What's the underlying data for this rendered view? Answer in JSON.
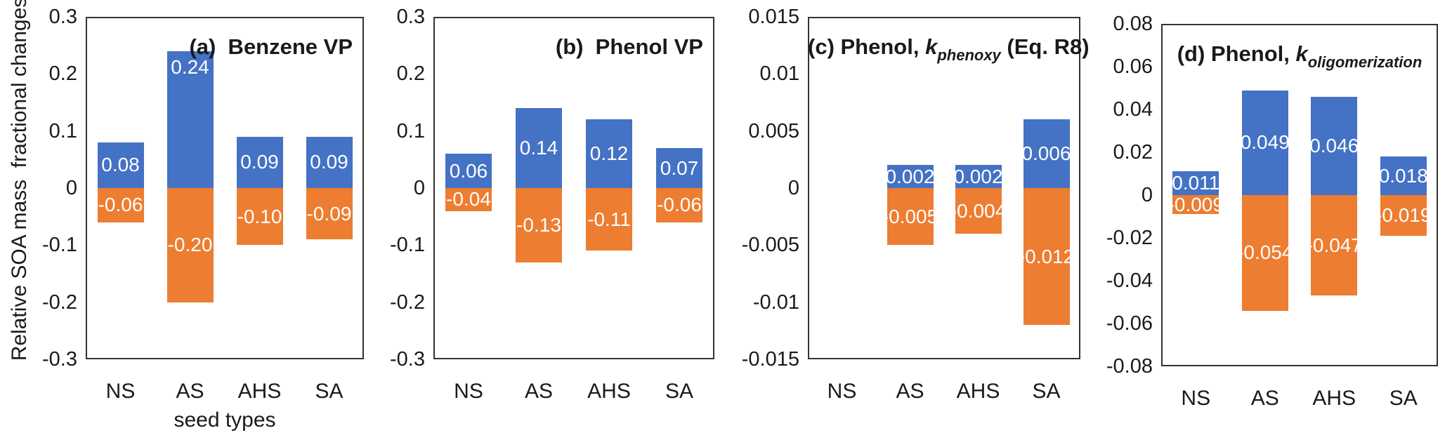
{
  "figure": {
    "y_axis_title": "Relative SOA mass  fractional changes",
    "x_axis_title": "seed types",
    "colors": {
      "positive_bar": "#4472C4",
      "negative_bar": "#ED7D31",
      "axis_line": "#333333",
      "bar_label_text": "#FFFFFF",
      "text": "#1A1A1A"
    }
  },
  "chart_data": [
    {
      "type": "bar",
      "panel": "a",
      "title": {
        "plain": "(a)  Benzene VP"
      },
      "categories": [
        "NS",
        "AS",
        "AHS",
        "SA"
      ],
      "series": [
        {
          "name": "positive",
          "color": "#4472C4",
          "values": [
            0.08,
            0.24,
            0.09,
            0.09
          ],
          "labels": [
            "0.08",
            "0.24",
            "0.09",
            "0.09"
          ],
          "label_anchors": [
            "center",
            "end",
            "center",
            "center"
          ]
        },
        {
          "name": "negative",
          "color": "#ED7D31",
          "values": [
            -0.06,
            -0.2,
            -0.1,
            -0.09
          ],
          "labels": [
            "-0.06",
            "-0.20",
            "-0.10",
            "-0.09"
          ]
        }
      ],
      "ylim": [
        -0.3,
        0.3
      ],
      "yticks": [
        "0.3",
        "0.2",
        "0.1",
        "0",
        "-0.1",
        "-0.2",
        "-0.3"
      ],
      "ylabel": "Relative SOA mass  fractional changes",
      "xlabel": "seed types",
      "grid": false,
      "legend": "none"
    },
    {
      "type": "bar",
      "panel": "b",
      "title": {
        "plain": "(b)  Phenol VP"
      },
      "categories": [
        "NS",
        "AS",
        "AHS",
        "SA"
      ],
      "series": [
        {
          "name": "positive",
          "color": "#4472C4",
          "values": [
            0.06,
            0.14,
            0.12,
            0.07
          ],
          "labels": [
            "0.06",
            "0.14",
            "0.12",
            "0.07"
          ]
        },
        {
          "name": "negative",
          "color": "#ED7D31",
          "values": [
            -0.04,
            -0.13,
            -0.11,
            -0.06
          ],
          "labels": [
            "-0.04",
            "-0.13",
            "-0.11",
            "-0.06"
          ]
        }
      ],
      "ylim": [
        -0.3,
        0.3
      ],
      "yticks": [
        "0.3",
        "0.2",
        "0.1",
        "0",
        "-0.1",
        "-0.2",
        "-0.3"
      ],
      "grid": false,
      "legend": "none"
    },
    {
      "type": "bar",
      "panel": "c",
      "title": {
        "pre": "(c) Phenol, ",
        "k": "k",
        "sub": "phenoxy",
        "post": " (Eq. R8)"
      },
      "categories": [
        "NS",
        "AS",
        "AHS",
        "SA"
      ],
      "series": [
        {
          "name": "positive",
          "color": "#4472C4",
          "values": [
            0,
            0.002,
            0.002,
            0.006
          ],
          "labels": [
            "",
            "0.002",
            "0.002",
            "0.006"
          ]
        },
        {
          "name": "negative",
          "color": "#ED7D31",
          "values": [
            0,
            -0.005,
            -0.004,
            -0.012
          ],
          "labels": [
            "",
            "-0.005",
            "-0.004",
            "-0.012"
          ]
        }
      ],
      "ylim": [
        -0.015,
        0.015
      ],
      "yticks": [
        "0.015",
        "0.01",
        "0.005",
        "0",
        "-0.005",
        "-0.01",
        "-0.015"
      ],
      "grid": false,
      "legend": "none"
    },
    {
      "type": "bar",
      "panel": "d",
      "title": {
        "pre": "(d) Phenol, ",
        "k": "k",
        "sub": "oligomerization",
        "post": ""
      },
      "categories": [
        "NS",
        "AS",
        "AHS",
        "SA"
      ],
      "series": [
        {
          "name": "positive",
          "color": "#4472C4",
          "values": [
            0.011,
            0.049,
            0.046,
            0.018
          ],
          "labels": [
            "0.011",
            "0.049",
            "0.046",
            "0.018"
          ]
        },
        {
          "name": "negative",
          "color": "#ED7D31",
          "values": [
            -0.009,
            -0.054,
            -0.047,
            -0.019
          ],
          "labels": [
            "-0.009",
            "-0.054",
            "-0.047",
            "-0.019"
          ]
        }
      ],
      "ylim": [
        -0.08,
        0.08
      ],
      "yticks": [
        "0.08",
        "0.06",
        "0.04",
        "0.02",
        "0",
        "-0.02",
        "-0.04",
        "-0.06",
        "-0.08"
      ],
      "grid": false,
      "legend": "none"
    }
  ]
}
